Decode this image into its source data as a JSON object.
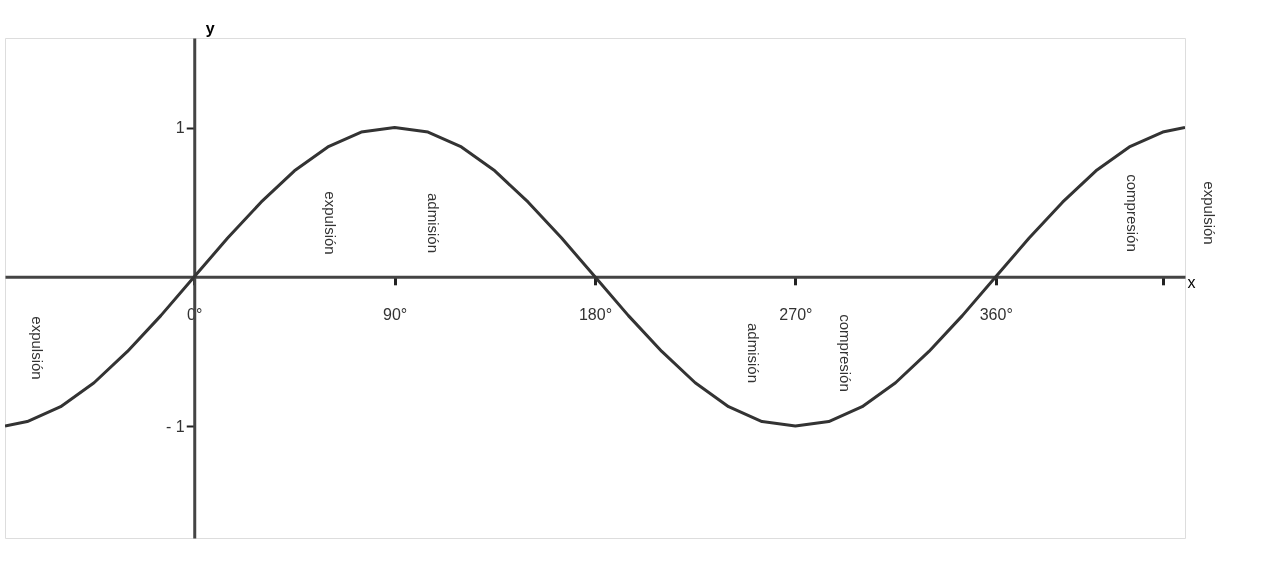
{
  "chart_data": {
    "type": "line",
    "xlabel": "x",
    "ylabel": "y",
    "xlim": [
      -85,
      445
    ],
    "ylim": [
      -1.75,
      1.6
    ],
    "xticks": [
      {
        "value": 0,
        "label": "0°"
      },
      {
        "value": 90,
        "label": "90°"
      },
      {
        "value": 180,
        "label": "180°"
      },
      {
        "value": 270,
        "label": "270°"
      },
      {
        "value": 360,
        "label": "360°"
      },
      {
        "value": 435,
        "label": null
      }
    ],
    "yticks": [
      {
        "value": -1,
        "label": "- 1"
      },
      {
        "value": 1,
        "label": "1"
      }
    ],
    "grid": false,
    "marker": "none",
    "line_style": "solid",
    "series": [
      {
        "color": "#333333",
        "x": [
          -85,
          -75,
          -60,
          -45,
          -30,
          -15,
          0,
          15,
          30,
          45,
          60,
          75,
          90,
          105,
          120,
          135,
          150,
          165,
          180,
          195,
          210,
          225,
          240,
          255,
          270,
          285,
          300,
          315,
          330,
          345,
          360,
          375,
          390,
          405,
          420,
          435,
          445
        ],
        "values": [
          -1.0,
          -0.97,
          -0.87,
          -0.71,
          -0.5,
          -0.26,
          0,
          0.26,
          0.5,
          0.71,
          0.87,
          0.97,
          1.0,
          0.97,
          0.87,
          0.71,
          0.5,
          0.26,
          0,
          -0.26,
          -0.5,
          -0.71,
          -0.87,
          -0.97,
          -1.0,
          -0.97,
          -0.87,
          -0.71,
          -0.5,
          -0.26,
          0,
          0.26,
          0.5,
          0.71,
          0.87,
          0.97,
          1.0
        ]
      }
    ],
    "annotations": [
      "expulsión",
      "expulsión",
      "admisión",
      "admisión",
      "compresión",
      "compresión",
      "expulsión"
    ]
  }
}
